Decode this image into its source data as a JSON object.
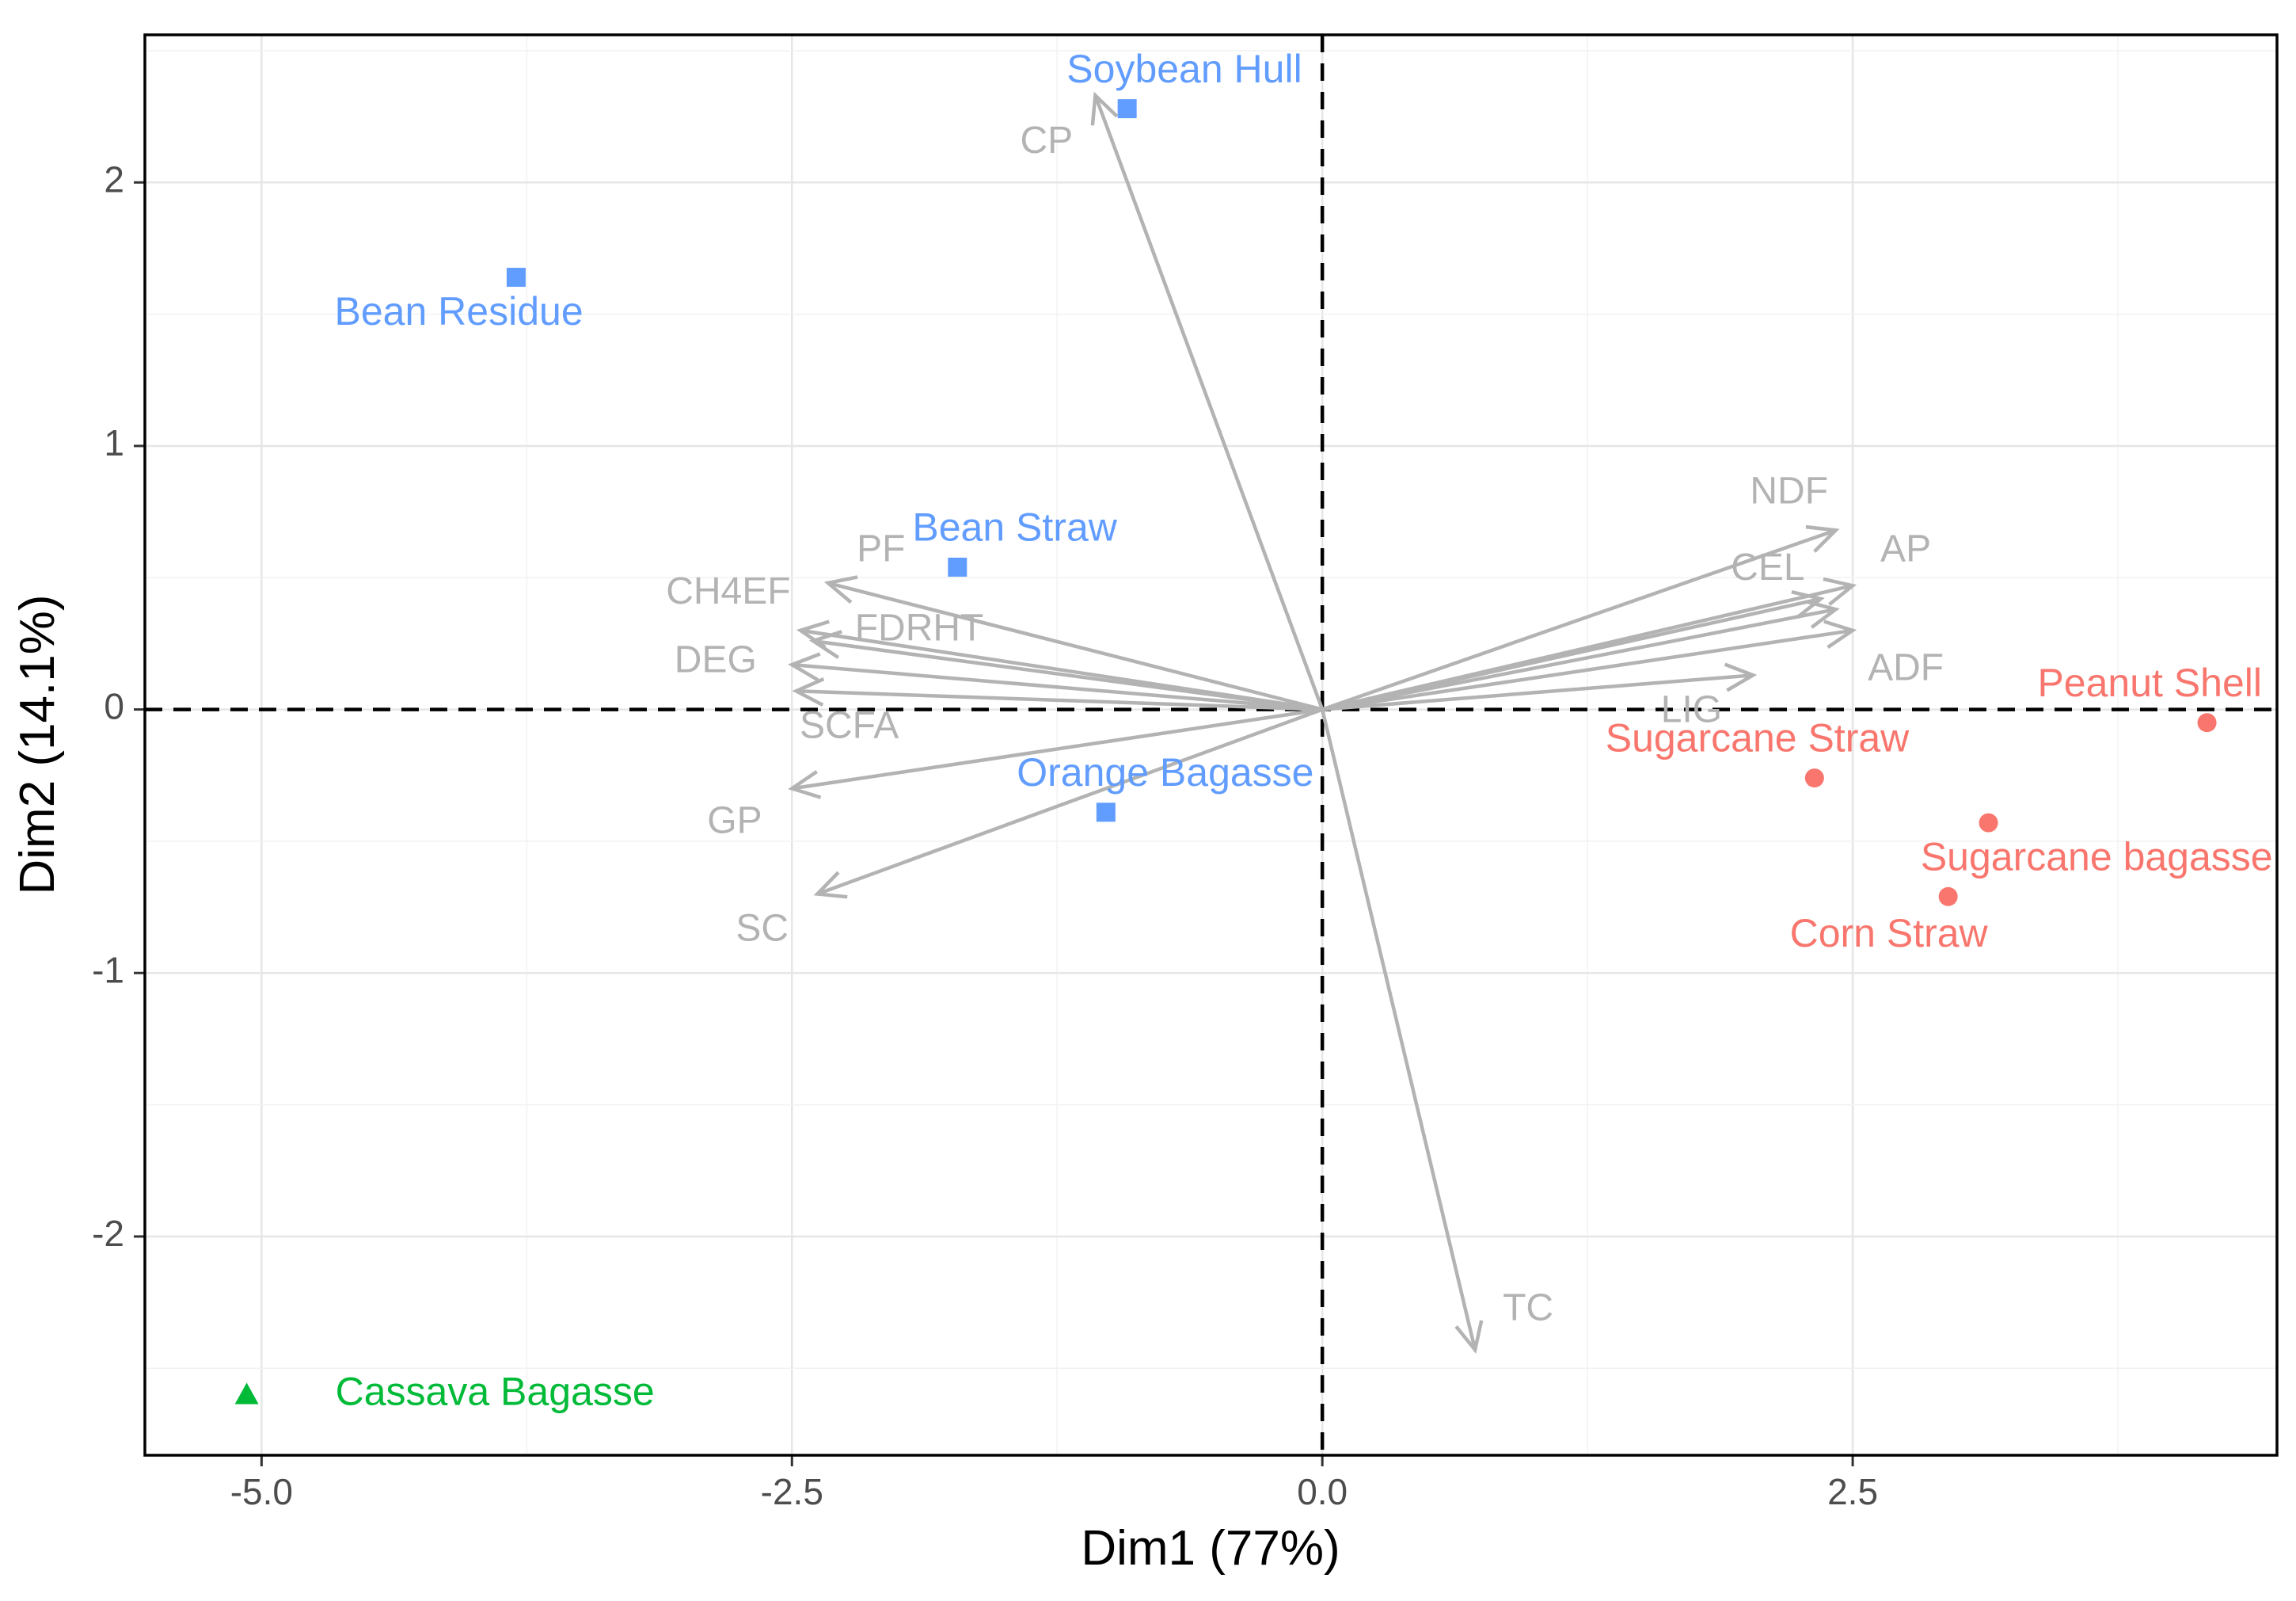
{
  "chart_data": {
    "type": "scatter",
    "subtype": "pca-biplot",
    "xlabel": "Dim1 (77%)",
    "ylabel": "Dim2 (14.1%)",
    "xlim": [
      -5.55,
      4.5
    ],
    "ylim": [
      -2.83,
      2.56
    ],
    "x_ticks": [
      -5.0,
      -2.5,
      0.0,
      2.5
    ],
    "x_tick_labels": [
      "-5.0",
      "-2.5",
      "0.0",
      "2.5"
    ],
    "y_ticks": [
      -2,
      -1,
      0,
      1,
      2
    ],
    "y_tick_labels": [
      "-2",
      "-1",
      "0",
      "1",
      "2"
    ],
    "grid": true,
    "legend": "none",
    "groups": [
      {
        "color": "#619CFF",
        "marker": "square"
      },
      {
        "color": "#F8766D",
        "marker": "circle"
      },
      {
        "color": "#00BA38",
        "marker": "triangle"
      }
    ],
    "points": [
      {
        "label": "Soybean Hull",
        "x": -0.92,
        "y": 2.28,
        "group": 0,
        "lx": -0.65,
        "ly": 2.42
      },
      {
        "label": "Bean Residue",
        "x": -3.8,
        "y": 1.64,
        "group": 0,
        "lx": -4.07,
        "ly": 1.5
      },
      {
        "label": "Bean Straw",
        "x": -1.72,
        "y": 0.54,
        "group": 0,
        "lx": -1.45,
        "ly": 0.68
      },
      {
        "label": "Orange Bagasse",
        "x": -1.02,
        "y": -0.39,
        "group": 0,
        "lx": -0.74,
        "ly": -0.25
      },
      {
        "label": "Peanut Shell",
        "x": 4.17,
        "y": -0.05,
        "group": 1,
        "lx": 3.9,
        "ly": 0.09
      },
      {
        "label": "Sugarcane Straw",
        "x": 2.32,
        "y": -0.26,
        "group": 1,
        "lx": 2.05,
        "ly": -0.12
      },
      {
        "label": "Sugarcane bagasse",
        "x": 3.14,
        "y": -0.43,
        "group": 1,
        "lx": 3.65,
        "ly": -0.57
      },
      {
        "label": "Corn Straw",
        "x": 2.95,
        "y": -0.71,
        "group": 1,
        "lx": 2.67,
        "ly": -0.86
      },
      {
        "label": "Cassava Bagasse",
        "x": -5.07,
        "y": -2.6,
        "group": 2,
        "lx": -3.9,
        "ly": -2.6
      }
    ],
    "vectors": [
      {
        "label": "CP",
        "x": -1.07,
        "y": 2.33,
        "lx": -1.3,
        "ly": 2.15
      },
      {
        "label": "PF",
        "x": -2.33,
        "y": 0.48,
        "lx": -2.08,
        "ly": 0.6
      },
      {
        "label": "CH4EF",
        "x": -2.46,
        "y": 0.3,
        "lx": -2.8,
        "ly": 0.44
      },
      {
        "label": "FDRHT",
        "x": -2.4,
        "y": 0.26,
        "lx": -1.9,
        "ly": 0.3
      },
      {
        "label": "DEG",
        "x": -2.5,
        "y": 0.17,
        "lx": -2.86,
        "ly": 0.18
      },
      {
        "label": "SCFA",
        "x": -2.48,
        "y": 0.07,
        "lx": -2.23,
        "ly": -0.07
      },
      {
        "label": "GP",
        "x": -2.5,
        "y": -0.3,
        "lx": -2.77,
        "ly": -0.43
      },
      {
        "label": "SC",
        "x": -2.38,
        "y": -0.7,
        "lx": -2.64,
        "ly": -0.84
      },
      {
        "label": "TC",
        "x": 0.72,
        "y": -2.43,
        "lx": 0.97,
        "ly": -2.28
      },
      {
        "label": "NDF",
        "x": 2.42,
        "y": 0.68,
        "lx": 2.2,
        "ly": 0.82
      },
      {
        "label": "CEL",
        "x": 2.35,
        "y": 0.42,
        "lx": 2.1,
        "ly": 0.53
      },
      {
        "label": "AP",
        "x": 2.5,
        "y": 0.47,
        "lx": 2.75,
        "ly": 0.6
      },
      {
        "label": "ADF",
        "x": 2.5,
        "y": 0.3,
        "lx": 2.75,
        "ly": 0.15
      },
      {
        "label": "LIG",
        "x": 2.03,
        "y": 0.13,
        "lx": 1.74,
        "ly": -0.01
      },
      {
        "label": "",
        "x": 2.42,
        "y": 0.38
      }
    ],
    "vector_color": "#B3B3B3"
  }
}
